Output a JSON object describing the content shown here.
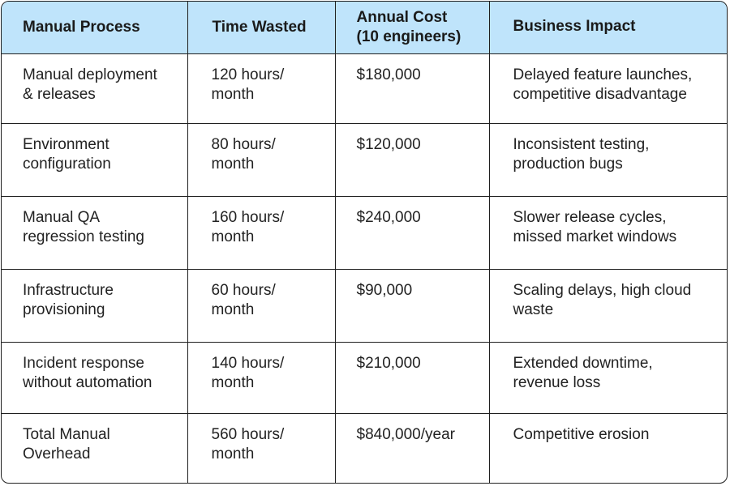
{
  "table": {
    "headers": {
      "process": "Manual Process",
      "time": "Time Wasted",
      "cost_line1": "Annual Cost",
      "cost_line2": "(10 engineers)",
      "impact": "Business Impact"
    },
    "rows": [
      {
        "process_l1": "Manual deployment",
        "process_l2": "& releases",
        "time_l1": "120 hours/",
        "time_l2": "month",
        "cost": "$180,000",
        "impact_l1": "Delayed feature launches,",
        "impact_l2": "competitive disadvantage"
      },
      {
        "process_l1": "Environment",
        "process_l2": "configuration",
        "time_l1": "80 hours/",
        "time_l2": "month",
        "cost": "$120,000",
        "impact_l1": "Inconsistent testing,",
        "impact_l2": "production bugs"
      },
      {
        "process_l1": "Manual QA",
        "process_l2": "regression testing",
        "time_l1": "160 hours/",
        "time_l2": "month",
        "cost": "$240,000",
        "impact_l1": "Slower release cycles,",
        "impact_l2": "missed market windows"
      },
      {
        "process_l1": "Infrastructure",
        "process_l2": "provisioning",
        "time_l1": "60 hours/",
        "time_l2": "month",
        "cost": "$90,000",
        "impact_l1": "Scaling delays, high cloud",
        "impact_l2": "waste"
      },
      {
        "process_l1": "Incident response",
        "process_l2": "without automation",
        "time_l1": "140 hours/",
        "time_l2": "month",
        "cost": "$210,000",
        "impact_l1": "Extended downtime,",
        "impact_l2": "revenue loss"
      },
      {
        "process_l1": "Total Manual",
        "process_l2": "Overhead",
        "time_l1": "560 hours/",
        "time_l2": "month",
        "cost": "$840,000/year",
        "impact_l1": "Competitive erosion",
        "impact_l2": ""
      }
    ]
  },
  "colors": {
    "header_bg": "#bfe4fb",
    "border": "#1f1f1f",
    "text": "#222222"
  }
}
